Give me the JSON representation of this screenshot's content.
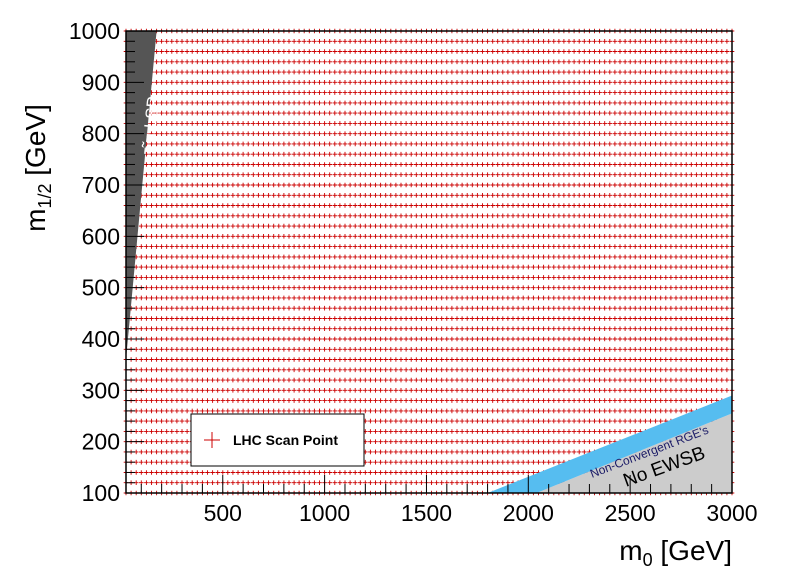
{
  "chart_data": {
    "type": "scatter",
    "title": "",
    "xlabel": "m",
    "xlabel_sub": "0",
    "xlabel_unit": " [GeV]",
    "ylabel": "m",
    "ylabel_sub": "1/2",
    "ylabel_unit": " [GeV]",
    "xlim": [
      25,
      3000
    ],
    "ylim": [
      100,
      1000
    ],
    "x_ticks": [
      500,
      1000,
      1500,
      2000,
      2500,
      3000
    ],
    "y_ticks": [
      100,
      200,
      300,
      400,
      500,
      600,
      700,
      800,
      900,
      1000
    ],
    "grid": false,
    "legend": {
      "placement": "bottom-left",
      "entries": [
        {
          "label": "LHC Scan Point",
          "marker": "+",
          "color": "#cc0000"
        }
      ]
    },
    "series": [
      {
        "name": "LHC Scan Point",
        "marker": "+",
        "color": "#cc0000",
        "grid": {
          "x_start": 25,
          "x_end": 3000,
          "x_step": 25,
          "y_start": 100,
          "y_end": 1000,
          "y_step": 20
        }
      }
    ],
    "regions": [
      {
        "name": "stau LSP",
        "label": "τ̃ = LSP",
        "color": "#555555",
        "polygon": [
          [
            25,
            1000
          ],
          [
            175,
            1000
          ],
          [
            25,
            360
          ]
        ]
      },
      {
        "name": "No EWSB",
        "label": "No EWSB",
        "color": "#cccccc",
        "polygon": [
          [
            2040,
            100
          ],
          [
            3000,
            100
          ],
          [
            3000,
            255
          ]
        ]
      },
      {
        "name": "Non-Convergent RGE's",
        "label": "Non-Convergent RGE's",
        "color": "#56bdf0",
        "polygon": [
          [
            1800,
            100
          ],
          [
            2040,
            100
          ],
          [
            3000,
            255
          ],
          [
            3000,
            290
          ]
        ]
      }
    ]
  }
}
